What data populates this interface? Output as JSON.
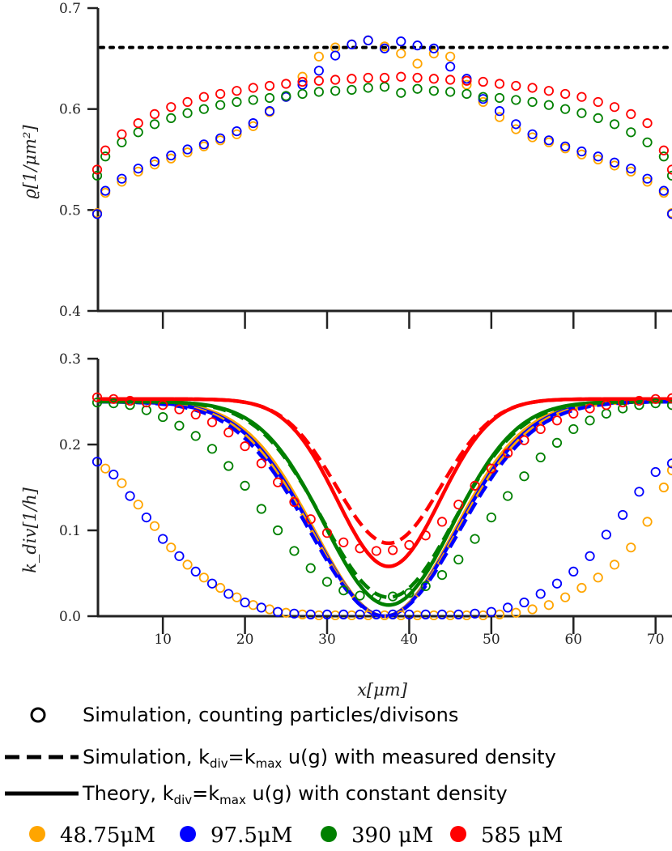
{
  "chart_data": [
    {
      "type": "scatter",
      "panel": "top",
      "ylabel": "ϱ[1/μm²]",
      "xlim": [
        2,
        72
      ],
      "ylim": [
        0.4,
        0.7
      ],
      "yticks": [
        0.4,
        0.5,
        0.6,
        0.7
      ],
      "ytick_labels": [
        "0.4",
        "0.5",
        "0.6",
        "0.7"
      ],
      "reference_line": {
        "style": "dotted",
        "y": 0.661,
        "color": "#000000"
      },
      "grid": false,
      "series": [
        {
          "name": "48.75μM",
          "color": "#FFA500",
          "marker": "open-circle",
          "x": [
            2,
            3,
            5,
            7,
            9,
            11,
            13,
            15,
            17,
            19,
            21,
            23,
            25,
            27,
            29,
            31,
            33,
            35,
            37,
            39,
            41,
            43,
            45,
            47,
            49,
            51,
            53,
            55,
            57,
            59,
            61,
            63,
            65,
            67,
            69,
            71,
            72
          ],
          "y": [
            0.497,
            0.517,
            0.528,
            0.538,
            0.545,
            0.551,
            0.557,
            0.563,
            0.569,
            0.575,
            0.583,
            0.597,
            0.612,
            0.632,
            0.652,
            0.661,
            0.664,
            0.668,
            0.662,
            0.655,
            0.645,
            0.655,
            0.652,
            0.624,
            0.607,
            0.592,
            0.58,
            0.572,
            0.567,
            0.561,
            0.555,
            0.55,
            0.544,
            0.538,
            0.528,
            0.517,
            0.497
          ]
        },
        {
          "name": "97.5μM",
          "color": "#0000FF",
          "marker": "open-circle",
          "x": [
            2,
            3,
            5,
            7,
            9,
            11,
            13,
            15,
            17,
            19,
            21,
            23,
            25,
            27,
            29,
            31,
            33,
            35,
            37,
            39,
            41,
            43,
            45,
            47,
            49,
            51,
            53,
            55,
            57,
            59,
            61,
            63,
            65,
            67,
            69,
            71,
            72
          ],
          "y": [
            0.496,
            0.519,
            0.531,
            0.541,
            0.548,
            0.554,
            0.56,
            0.565,
            0.571,
            0.578,
            0.586,
            0.598,
            0.612,
            0.624,
            0.638,
            0.653,
            0.664,
            0.668,
            0.66,
            0.667,
            0.663,
            0.66,
            0.642,
            0.63,
            0.61,
            0.598,
            0.585,
            0.575,
            0.569,
            0.563,
            0.558,
            0.553,
            0.547,
            0.541,
            0.531,
            0.519,
            0.496
          ]
        },
        {
          "name": "390 μM",
          "color": "#008000",
          "marker": "open-circle",
          "x": [
            2,
            3,
            5,
            7,
            9,
            11,
            13,
            15,
            17,
            19,
            21,
            23,
            25,
            27,
            29,
            31,
            33,
            35,
            37,
            39,
            41,
            43,
            45,
            47,
            49,
            51,
            53,
            55,
            57,
            59,
            61,
            63,
            65,
            67,
            69,
            71,
            72
          ],
          "y": [
            0.534,
            0.553,
            0.567,
            0.577,
            0.585,
            0.591,
            0.596,
            0.6,
            0.604,
            0.607,
            0.609,
            0.611,
            0.613,
            0.615,
            0.617,
            0.618,
            0.619,
            0.621,
            0.622,
            0.616,
            0.62,
            0.618,
            0.617,
            0.615,
            0.612,
            0.611,
            0.609,
            0.607,
            0.604,
            0.6,
            0.596,
            0.591,
            0.585,
            0.577,
            0.567,
            0.553,
            0.534
          ]
        },
        {
          "name": "585 μM",
          "color": "#FF0000",
          "marker": "open-circle",
          "x": [
            2,
            3,
            5,
            7,
            9,
            11,
            13,
            15,
            17,
            19,
            21,
            23,
            25,
            27,
            29,
            31,
            33,
            35,
            37,
            39,
            41,
            43,
            45,
            47,
            49,
            51,
            53,
            55,
            57,
            59,
            61,
            63,
            65,
            67,
            69,
            71,
            72
          ],
          "y": [
            0.54,
            0.559,
            0.575,
            0.586,
            0.595,
            0.602,
            0.607,
            0.612,
            0.615,
            0.618,
            0.621,
            0.623,
            0.625,
            0.627,
            0.628,
            0.629,
            0.63,
            0.631,
            0.631,
            0.632,
            0.631,
            0.63,
            0.629,
            0.628,
            0.627,
            0.625,
            0.623,
            0.621,
            0.618,
            0.615,
            0.612,
            0.607,
            0.602,
            0.595,
            0.586,
            0.559,
            0.54
          ]
        }
      ]
    },
    {
      "type": "line",
      "panel": "bottom",
      "xlabel": "x[μm]",
      "ylabel": "k_div[1/h]",
      "xlim": [
        2,
        72
      ],
      "ylim": [
        0,
        0.3
      ],
      "xticks": [
        10,
        20,
        30,
        40,
        50,
        60,
        70
      ],
      "xtick_labels": [
        "10",
        "20",
        "30",
        "40",
        "50",
        "60",
        "70"
      ],
      "yticks": [
        0.0,
        0.1,
        0.2,
        0.3
      ],
      "ytick_labels": [
        "0.0",
        "0.1",
        "0.2",
        "0.3"
      ],
      "grid": false,
      "series": [
        {
          "name": "48.75μM",
          "color": "#FFA500",
          "theory": {
            "kmax": 0.25,
            "min": 0.0,
            "center": 37,
            "width": 12
          },
          "measured": {
            "kmax": 0.25,
            "min": 0.0,
            "center": 37,
            "width": 12.5
          },
          "points_x": [
            3,
            5,
            7,
            9,
            11,
            13,
            15,
            17,
            19,
            21,
            23,
            25,
            27,
            29,
            31,
            33,
            35,
            37,
            39,
            41,
            43,
            45,
            47,
            49,
            51,
            53,
            55,
            57,
            59,
            61,
            63,
            65,
            67,
            69,
            71,
            72
          ],
          "points_y": [
            0.172,
            0.155,
            0.13,
            0.105,
            0.08,
            0.06,
            0.045,
            0.033,
            0.022,
            0.013,
            0.008,
            0.004,
            0.002,
            0.001,
            0.001,
            0.001,
            0.001,
            0.001,
            0.001,
            0.001,
            0.001,
            0.001,
            0.001,
            0.001,
            0.002,
            0.004,
            0.008,
            0.013,
            0.022,
            0.033,
            0.045,
            0.06,
            0.08,
            0.11,
            0.15,
            0.17
          ]
        },
        {
          "name": "97.5μM",
          "color": "#0000FF",
          "theory": {
            "kmax": 0.25,
            "min": 0.0,
            "center": 37,
            "width": 12.3
          },
          "measured": {
            "kmax": 0.25,
            "min": 0.0,
            "center": 37,
            "width": 12.8
          },
          "points_x": [
            2,
            4,
            6,
            8,
            10,
            12,
            14,
            16,
            18,
            20,
            22,
            24,
            26,
            28,
            30,
            32,
            34,
            36,
            38,
            40,
            42,
            44,
            46,
            48,
            50,
            52,
            54,
            56,
            58,
            60,
            62,
            64,
            66,
            68,
            70,
            72
          ],
          "points_y": [
            0.18,
            0.165,
            0.14,
            0.115,
            0.09,
            0.07,
            0.052,
            0.038,
            0.026,
            0.016,
            0.01,
            0.005,
            0.003,
            0.002,
            0.002,
            0.002,
            0.002,
            0.002,
            0.002,
            0.002,
            0.002,
            0.002,
            0.002,
            0.003,
            0.005,
            0.01,
            0.016,
            0.026,
            0.038,
            0.052,
            0.07,
            0.095,
            0.118,
            0.145,
            0.168,
            0.178
          ]
        },
        {
          "name": "390 μM",
          "color": "#008000",
          "theory": {
            "kmax": 0.25,
            "min": 0.013,
            "center": 37.5,
            "width": 11
          },
          "measured": {
            "kmax": 0.25,
            "min": 0.022,
            "center": 37.5,
            "width": 11.3
          },
          "points_x": [
            2,
            4,
            6,
            8,
            10,
            12,
            14,
            16,
            18,
            20,
            22,
            24,
            26,
            28,
            30,
            32,
            34,
            36,
            38,
            40,
            42,
            44,
            46,
            48,
            50,
            52,
            54,
            56,
            58,
            60,
            62,
            64,
            66,
            68,
            70,
            72
          ],
          "points_y": [
            0.249,
            0.248,
            0.246,
            0.24,
            0.232,
            0.222,
            0.21,
            0.195,
            0.175,
            0.152,
            0.125,
            0.1,
            0.076,
            0.056,
            0.04,
            0.03,
            0.024,
            0.022,
            0.023,
            0.027,
            0.035,
            0.048,
            0.066,
            0.09,
            0.115,
            0.14,
            0.163,
            0.185,
            0.202,
            0.218,
            0.228,
            0.236,
            0.242,
            0.246,
            0.248,
            0.246
          ]
        },
        {
          "name": "585 μM",
          "color": "#FF0000",
          "theory": {
            "kmax": 0.253,
            "min": 0.058,
            "center": 37.5,
            "width": 8.8
          },
          "measured": {
            "kmax": 0.253,
            "min": 0.085,
            "center": 37.5,
            "width": 9
          },
          "points_x": [
            2,
            4,
            6,
            8,
            10,
            12,
            14,
            16,
            18,
            20,
            22,
            24,
            26,
            28,
            30,
            32,
            34,
            36,
            38,
            40,
            42,
            44,
            46,
            48,
            50,
            52,
            54,
            56,
            58,
            60,
            62,
            64,
            66,
            68,
            70,
            72
          ],
          "points_y": [
            0.255,
            0.253,
            0.251,
            0.249,
            0.246,
            0.241,
            0.235,
            0.226,
            0.214,
            0.198,
            0.178,
            0.156,
            0.133,
            0.113,
            0.097,
            0.086,
            0.079,
            0.076,
            0.077,
            0.083,
            0.094,
            0.11,
            0.13,
            0.152,
            0.172,
            0.19,
            0.205,
            0.218,
            0.228,
            0.236,
            0.242,
            0.246,
            0.249,
            0.251,
            0.253,
            0.254
          ]
        }
      ]
    }
  ],
  "legend": {
    "markers": [
      {
        "label": "Simulation, counting particles/divisons",
        "style": "open-circle"
      },
      {
        "label": "Simulation, k",
        "sub": "div",
        "mid": "=k",
        "sub2": "max",
        "tail": " u(g) with measured density",
        "style": "dashed"
      },
      {
        "label": "Theory, k",
        "sub": "div",
        "mid": "=k",
        "sub2": "max",
        "tail": " u(g) with constant density",
        "style": "solid"
      }
    ],
    "concentrations": [
      {
        "label": "48.75μM",
        "color": "#FFA500"
      },
      {
        "label": "97.5μM",
        "color": "#0000FF"
      },
      {
        "label": "390 μM",
        "color": "#008000"
      },
      {
        "label": "585 μM",
        "color": "#FF0000"
      }
    ]
  }
}
